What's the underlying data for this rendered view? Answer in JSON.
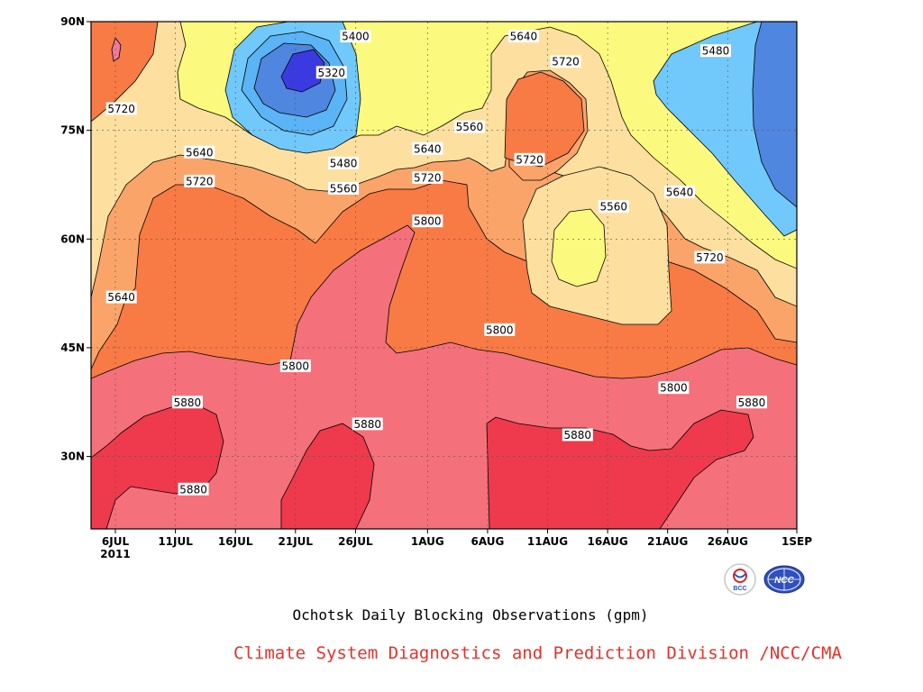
{
  "chart_data": {
    "type": "heatmap",
    "title": "Ochotsk Daily Blocking Observations (gpm)",
    "subtitle": "Climate System Diagnostics and Prediction Division /NCC/CMA",
    "xaxis": {
      "ticks": [
        "6JUL",
        "11JUL",
        "16JUL",
        "21JUL",
        "26JUL",
        "1AUG",
        "6AUG",
        "11AUG",
        "16AUG",
        "21AUG",
        "26AUG",
        "1SEP"
      ],
      "tick_offsets": [
        0,
        5,
        10,
        15,
        20,
        26,
        31,
        36,
        41,
        46,
        51,
        57
      ],
      "year_label": "2011",
      "range": [
        "2011-07-05",
        "2011-09-01"
      ]
    },
    "yaxis": {
      "ticks": [
        "30N",
        "45N",
        "60N",
        "75N",
        "90N"
      ],
      "tick_values": [
        30,
        45,
        60,
        75,
        90
      ],
      "range": [
        20,
        90
      ]
    },
    "grid": true,
    "contour_levels": [
      5320,
      5400,
      5480,
      5560,
      5640,
      5720,
      5800,
      5880
    ],
    "colors": {
      "lt5320": "#3a3ae0",
      "5320": "#4f86df",
      "5400": "#5ab4f5",
      "5480": "#71c8fb",
      "5560": "#fcfa7e",
      "5640": "#fde0a0",
      "5720": "#fba46a",
      "5800": "#f87a45",
      "5880": "#f4707a",
      "gt5880": "#ee3a4c",
      "pink_spot": "#f07a9a"
    },
    "contour_labels": [
      {
        "text": "5400",
        "day": 20,
        "lat": 88
      },
      {
        "text": "5320",
        "day": 18,
        "lat": 83
      },
      {
        "text": "5480",
        "day": 19,
        "lat": 70.5
      },
      {
        "text": "5560",
        "day": 19,
        "lat": 67
      },
      {
        "text": "5640",
        "day": 7,
        "lat": 72
      },
      {
        "text": "5720",
        "day": 7,
        "lat": 68
      },
      {
        "text": "5720",
        "day": 0.5,
        "lat": 78
      },
      {
        "text": "5640",
        "day": 26,
        "lat": 72.5
      },
      {
        "text": "5720",
        "day": 26,
        "lat": 68.5
      },
      {
        "text": "5560",
        "day": 29.5,
        "lat": 75.5
      },
      {
        "text": "5800",
        "day": 26,
        "lat": 62.5
      },
      {
        "text": "5640",
        "day": 34,
        "lat": 88
      },
      {
        "text": "5720",
        "day": 37.5,
        "lat": 84.5
      },
      {
        "text": "5720",
        "day": 34.5,
        "lat": 71
      },
      {
        "text": "5560",
        "day": 41.5,
        "lat": 64.5
      },
      {
        "text": "5640",
        "day": 47,
        "lat": 66.5
      },
      {
        "text": "5480",
        "day": 50,
        "lat": 86
      },
      {
        "text": "5720",
        "day": 49.5,
        "lat": 57.5
      },
      {
        "text": "5800",
        "day": 32,
        "lat": 47.5
      },
      {
        "text": "5800",
        "day": 15,
        "lat": 42.5
      },
      {
        "text": "5800",
        "day": 46.5,
        "lat": 39.5
      },
      {
        "text": "5880",
        "day": 6,
        "lat": 37.5
      },
      {
        "text": "5880",
        "day": 6.5,
        "lat": 25.5
      },
      {
        "text": "5880",
        "day": 21,
        "lat": 34.5
      },
      {
        "text": "5880",
        "day": 38.5,
        "lat": 33
      },
      {
        "text": "5880",
        "day": 53,
        "lat": 37.5
      },
      {
        "text": "5640",
        "day": 0.5,
        "lat": 52
      }
    ],
    "logos": [
      "BCC",
      "NCC"
    ]
  }
}
